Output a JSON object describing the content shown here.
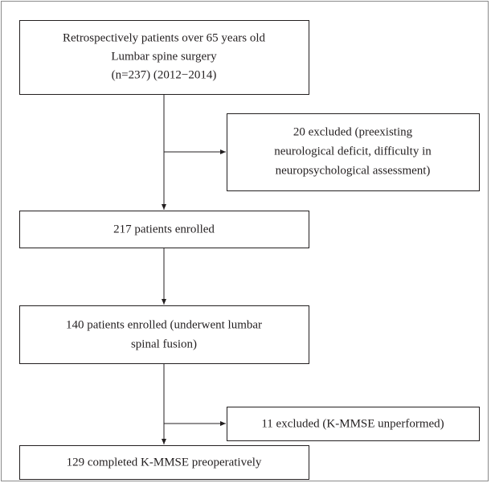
{
  "nodes": [
    {
      "lines": [
        "Retrospectively patients over 65 years old",
        "Lumbar spine surgery",
        "(n=237) (2012−2014)"
      ]
    },
    {
      "lines": [
        "20 excluded (preexisting",
        "neurological deficit, difficulty in",
        "neuropsychological assessment)"
      ]
    },
    {
      "lines": [
        "217 patients enrolled"
      ]
    },
    {
      "lines": [
        "140 patients enrolled (underwent lumbar",
        "spinal fusion)"
      ]
    },
    {
      "lines": [
        "11 excluded (K-MMSE unperformed)"
      ]
    },
    {
      "lines": [
        "129 completed K-MMSE preoperatively"
      ]
    }
  ]
}
